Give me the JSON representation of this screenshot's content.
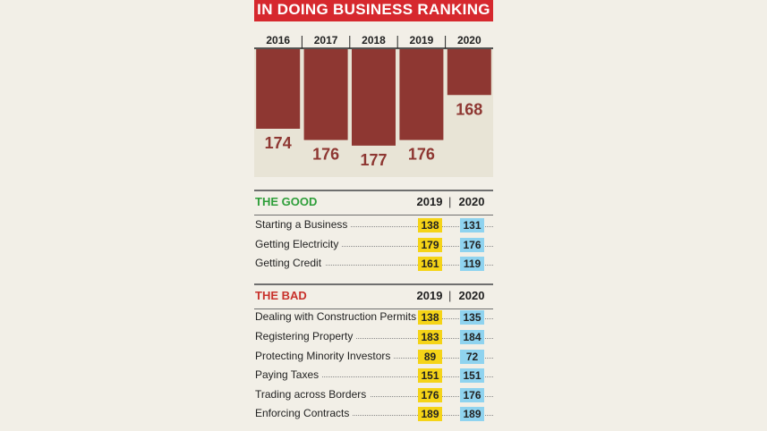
{
  "banner": {
    "title": "IN DOING BUSINESS RANKING"
  },
  "chart_data": {
    "type": "bar",
    "categories": [
      "2016",
      "2017",
      "2018",
      "2019",
      "2020"
    ],
    "values": [
      174,
      176,
      177,
      176,
      168
    ],
    "title": "IN DOING BUSINESS RANKING",
    "xlabel": "",
    "ylabel": "",
    "axis_position": "top",
    "colors": {
      "bar": "#8e3732",
      "plot_bg": "#e8e4d6",
      "label": "#8e3732"
    }
  },
  "good": {
    "title": "THE GOOD",
    "col_a": "2019",
    "col_sep": "|",
    "col_b": "2020",
    "rows": [
      {
        "label": "Starting a Business",
        "v2019": "138",
        "v2020": "131"
      },
      {
        "label": "Getting Electricity",
        "v2019": "179",
        "v2020": "176"
      },
      {
        "label": "Getting Credit",
        "v2019": "161",
        "v2020": "119"
      }
    ]
  },
  "bad": {
    "title": "THE BAD",
    "col_a": "2019",
    "col_sep": "|",
    "col_b": "2020",
    "rows": [
      {
        "label": "Dealing with Construction Permits",
        "v2019": "138",
        "v2020": "135"
      },
      {
        "label": "Registering Property",
        "v2019": "183",
        "v2020": "184"
      },
      {
        "label": "Protecting Minority Investors",
        "v2019": "89",
        "v2020": "72"
      },
      {
        "label": "Paying Taxes",
        "v2019": "151",
        "v2020": "151"
      },
      {
        "label": "Trading across Borders",
        "v2019": "176",
        "v2020": "176"
      },
      {
        "label": "Enforcing Contracts",
        "v2019": "189",
        "v2020": "189"
      }
    ]
  },
  "colors": {
    "good": "#2e9e3a",
    "bad": "#c8312b",
    "banner": "#d6282e",
    "val2019": "#f5d417",
    "val2020": "#8fd3ef"
  }
}
